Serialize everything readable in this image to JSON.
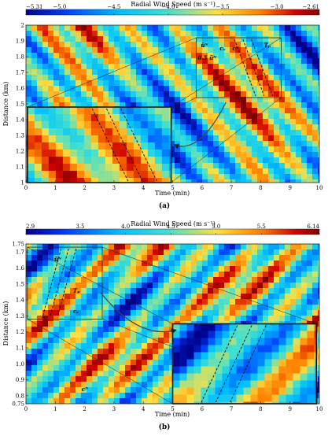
{
  "colors": {
    "stops": [
      "#00008b",
      "#0040ff",
      "#00c0ff",
      "#40e0d0",
      "#ffe040",
      "#ff8000",
      "#d00000",
      "#800000"
    ]
  },
  "chart_data": [
    {
      "type": "heatmap",
      "panel": "(a)",
      "colorbar_label": "Radial Wind Speed (m s⁻¹)",
      "colorbar_ticks": [
        "−5.31",
        "−5.0",
        "−4.5",
        "−4.0",
        "−3.5",
        "−3.0",
        "−2.61"
      ],
      "colorbar_values": [
        -5.31,
        -5.0,
        -4.5,
        -4.0,
        -3.5,
        -3.0,
        -2.61
      ],
      "clim": [
        -5.31,
        -2.61
      ],
      "xlabel": "Time (min)",
      "ylabel": "Distance (km)",
      "xlim": [
        0,
        10
      ],
      "ylim": [
        1,
        2
      ],
      "x_ticks": [
        "0",
        "1",
        "2",
        "3",
        "4",
        "5",
        "6",
        "7",
        "8",
        "9",
        "10"
      ],
      "y_ticks": [
        "1",
        "1.1",
        "1.2",
        "1.3",
        "1.4",
        "1.5",
        "1.6",
        "1.7",
        "1.8",
        "1.9",
        "2"
      ],
      "y_tick_values": [
        1,
        1.1,
        1.2,
        1.3,
        1.4,
        1.5,
        1.6,
        1.7,
        1.8,
        1.9,
        2
      ],
      "annotations": [
        "Tₚ",
        "u̅ᴺ",
        "0.5 u̅ᴺ",
        "cₑ",
        "cᴺ"
      ],
      "zoom_source": {
        "x": [
          5.8,
          8.7
        ],
        "y": [
          1.54,
          1.92
        ]
      },
      "inset_extent": {
        "x": [
          0.05,
          4.95
        ],
        "y": [
          1.0,
          1.48
        ]
      }
    },
    {
      "type": "heatmap",
      "panel": "(b)",
      "colorbar_label": "Radial Wind Speed (m s⁻¹)",
      "colorbar_ticks": [
        "2.9",
        "3.5",
        "4.0",
        "4.5",
        "5.0",
        "5.5",
        "6.14"
      ],
      "colorbar_values": [
        2.9,
        3.5,
        4.0,
        4.5,
        5.0,
        5.5,
        6.14
      ],
      "clim": [
        2.9,
        6.14
      ],
      "xlabel": "Time (min)",
      "ylabel": "Distance (km)",
      "xlim": [
        0,
        10
      ],
      "ylim": [
        0.75,
        1.75
      ],
      "x_ticks": [
        "0",
        "1",
        "2",
        "3",
        "4",
        "5",
        "6",
        "7",
        "8",
        "9",
        "10"
      ],
      "y_ticks": [
        "0.75",
        "0.8",
        "0.9",
        "1.0",
        "1.1",
        "1.2",
        "1.3",
        "1.4",
        "1.5",
        "1.6",
        "1.7",
        "1.75"
      ],
      "y_tick_values": [
        0.75,
        0.8,
        0.9,
        1.0,
        1.1,
        1.2,
        1.3,
        1.4,
        1.5,
        1.6,
        1.7,
        1.75
      ],
      "annotations": [
        "u̅ᴺ",
        "Tₚ",
        "cₑ",
        "cᴺ"
      ],
      "zoom_source": {
        "x": [
          0.05,
          2.6
        ],
        "y": [
          1.28,
          1.73
        ]
      },
      "inset_extent": {
        "x": [
          5.0,
          9.9
        ],
        "y": [
          0.75,
          1.25
        ]
      }
    }
  ]
}
